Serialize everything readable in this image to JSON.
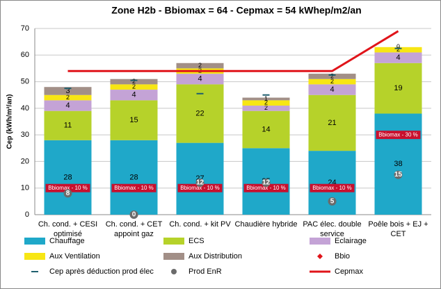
{
  "chart_data": {
    "type": "bar",
    "title": "Zone H2b - Bbiomax = 64 - Cepmax =  54 kWhep/m2/an",
    "y_label": "Cep (kWh/m²/an)",
    "categories": [
      "Ch. cond. + CESI optimisé",
      "Ch. cond. + CET appoint gaz",
      "Ch. cond. + kit PV",
      "Chaudière hybride",
      "PAC élec. double service",
      "Poêle bois + EJ + CET"
    ],
    "ylim": [
      0,
      70
    ],
    "yticks": [
      0,
      10,
      20,
      30,
      40,
      50,
      60,
      70
    ],
    "grid": true,
    "series": [
      {
        "name": "Chauffage",
        "type": "bar",
        "color": "#1fa8c9",
        "values": [
          28,
          28,
          27,
          25,
          24,
          38
        ]
      },
      {
        "name": "ECS",
        "type": "bar",
        "color": "#b6d22a",
        "values": [
          11,
          15,
          22,
          14,
          21,
          19
        ]
      },
      {
        "name": "Eclairage",
        "type": "bar",
        "color": "#c4a3d6",
        "values": [
          4,
          4,
          4,
          2,
          4,
          4
        ]
      },
      {
        "name": "Aux Ventilation",
        "type": "bar",
        "color": "#f7e614",
        "values": [
          2,
          2,
          2,
          2,
          2,
          2
        ]
      },
      {
        "name": "Aux Distribution",
        "type": "bar",
        "color": "#a28f87",
        "values": [
          3,
          2,
          2,
          1,
          2,
          0
        ]
      },
      {
        "name": "Bbio",
        "type": "diamond",
        "color": "#e0141a",
        "values": [
          10,
          10,
          10,
          10,
          10,
          30
        ],
        "value_labels": [
          "Bbiomax - 10 %",
          "Bbiomax - 10 %",
          "Bbiomax - 10 %",
          "Bbiomax - 10 %",
          "Bbiomax - 10 %",
          "Bbiomax - 30 %"
        ]
      },
      {
        "name": "Cep après déduction prod élec",
        "type": "dash",
        "color": "#1f5f6e",
        "values": [
          47.5,
          50.5,
          45.5,
          45,
          52.5,
          62.5
        ]
      },
      {
        "name": "Prod EnR",
        "type": "circle",
        "color": "#6b6b6b",
        "values": [
          8,
          0,
          12,
          12,
          5,
          15
        ]
      },
      {
        "name": "Cepmax",
        "type": "line",
        "color": "#e0141a",
        "values": [
          54,
          54,
          54,
          54,
          54,
          69
        ]
      }
    ]
  }
}
